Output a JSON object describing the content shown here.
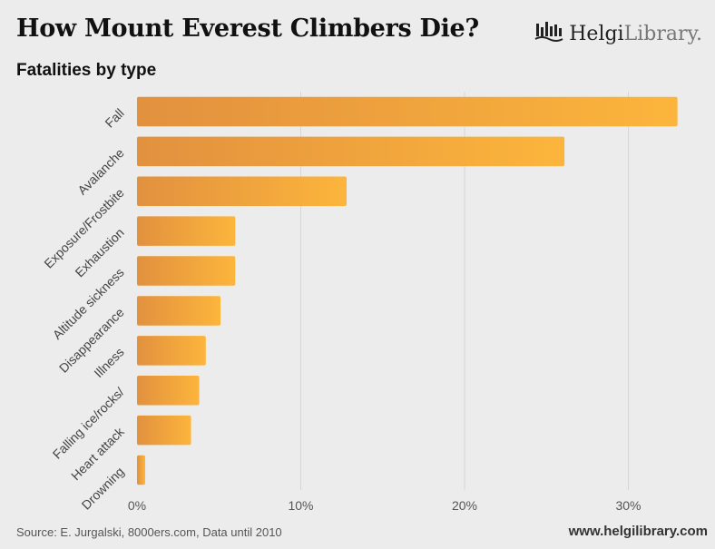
{
  "header": {
    "title": "How Mount Everest Climbers Die?",
    "subtitle": "Fatalities by type"
  },
  "logo": {
    "icon": "helgi-library-logo-icon",
    "text_bold": "Helgi",
    "text_light": "Library."
  },
  "footer": {
    "source": "Source: E. Jurgalski, 8000ers.com, Data until 2010",
    "url": "www.helgilibrary.com"
  },
  "colors": {
    "bar_start": "#e2913e",
    "bar_end": "#fcb53c",
    "background": "#ececec",
    "grid": "#d6d6d6"
  },
  "chart_data": {
    "type": "bar",
    "orientation": "horizontal",
    "title": "How Mount Everest Climbers Die?",
    "subtitle": "Fatalities by type",
    "categories": [
      "Fall",
      "Avalanche",
      "Exposure/Frostbite",
      "Exhaustion",
      "Altitude sickness",
      "Disappearance",
      "Illness",
      "Falling ice/rocks/",
      "Heart attack",
      "Drowning"
    ],
    "values": [
      33.0,
      26.1,
      12.8,
      6.0,
      6.0,
      5.1,
      4.2,
      3.8,
      3.3,
      0.5
    ],
    "unit": "%",
    "xlim": [
      0,
      35
    ],
    "xticks": [
      0,
      10,
      20,
      30
    ],
    "xtick_labels": [
      "0%",
      "10%",
      "20%",
      "30%"
    ],
    "grid": true,
    "legend": false
  }
}
